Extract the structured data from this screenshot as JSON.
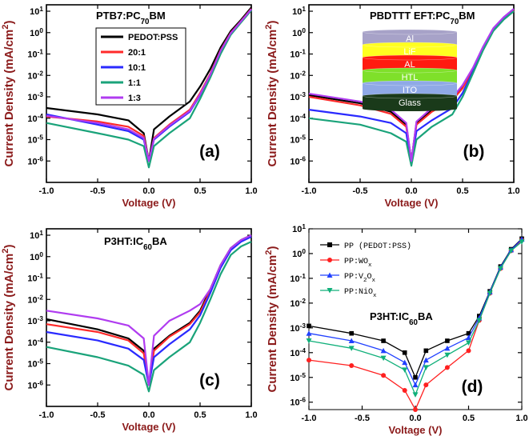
{
  "colors": {
    "black": "#000000",
    "red": "#ff2a2a",
    "blue": "#2a2aff",
    "teal": "#1aa37a",
    "purple": "#b03cf0",
    "axis_label": "#8b1a1a",
    "d_black": "#000000",
    "d_red": "#ff2020",
    "d_blue": "#2040ff",
    "d_teal": "#10b07a"
  },
  "chart_data": [
    {
      "panel": "a",
      "type": "line",
      "label": "(a)",
      "title": {
        "pre": "PTB7:PC",
        "sub": "70",
        "post": "BM"
      },
      "xlabel": "Voltage (V)",
      "ylabel": "Current Density (mA/cm²)",
      "ylabel_parts": {
        "pre": "Current Density (mA/cm",
        "sup": "2",
        "post": ")"
      },
      "xlim": [
        -1.0,
        1.0
      ],
      "ylim_log10": [
        -7,
        1.3
      ],
      "xticks": [
        "-1.0",
        "-0.5",
        "0.0",
        "0.5",
        "1.0"
      ],
      "yticks": [
        {
          "m": "10",
          "e": "1"
        },
        {
          "m": "10",
          "e": "0"
        },
        {
          "m": "10",
          "e": "-1"
        },
        {
          "m": "10",
          "e": "-2"
        },
        {
          "m": "10",
          "e": "-3"
        },
        {
          "m": "10",
          "e": "-4"
        },
        {
          "m": "10",
          "e": "-5"
        },
        {
          "m": "10",
          "e": "-6"
        }
      ],
      "legend": [
        "PEDOT:PSS",
        "20:1",
        "10:1",
        "1:1",
        "1:3"
      ],
      "series": [
        {
          "name": "PEDOT:PSS",
          "color": "black",
          "x": [
            -1.0,
            -0.5,
            -0.2,
            -0.05,
            0,
            0.05,
            0.2,
            0.4,
            0.5,
            0.6,
            0.7,
            0.8,
            0.9,
            1.0
          ],
          "y": [
            0.0003,
            0.00015,
            8e-05,
            2e-05,
            1e-06,
            3e-05,
            0.00012,
            0.0006,
            0.003,
            0.02,
            0.2,
            1.2,
            4,
            15
          ]
        },
        {
          "name": "20:1",
          "color": "red",
          "x": [
            -1.0,
            -0.5,
            -0.2,
            -0.05,
            0,
            0.05,
            0.2,
            0.4,
            0.5,
            0.6,
            0.7,
            0.8,
            0.9,
            1.0
          ],
          "y": [
            0.00012,
            7e-05,
            4e-05,
            1.5e-05,
            1e-06,
            1.2e-05,
            5e-05,
            0.00025,
            0.0015,
            0.012,
            0.15,
            1,
            3.5,
            13
          ]
        },
        {
          "name": "10:1",
          "color": "blue",
          "x": [
            -1.0,
            -0.5,
            -0.2,
            -0.05,
            0,
            0.05,
            0.2,
            0.4,
            0.5,
            0.6,
            0.7,
            0.8,
            0.9,
            1.0
          ],
          "y": [
            0.00015,
            5e-05,
            2.5e-05,
            1e-05,
            1e-06,
            1e-05,
            4e-05,
            0.0002,
            0.0012,
            0.01,
            0.13,
            0.9,
            3.2,
            12
          ]
        },
        {
          "name": "1:1",
          "color": "teal",
          "x": [
            -1.0,
            -0.5,
            -0.2,
            -0.05,
            0,
            0.05,
            0.2,
            0.4,
            0.5,
            0.6,
            0.7,
            0.8,
            0.9,
            1.0
          ],
          "y": [
            6e-05,
            2e-05,
            1e-05,
            5e-06,
            5e-07,
            5e-06,
            2e-05,
            0.0001,
            0.0008,
            0.008,
            0.1,
            0.8,
            3,
            11
          ]
        },
        {
          "name": "1:3",
          "color": "purple",
          "x": [
            -1.0,
            -0.5,
            -0.2,
            -0.05,
            0,
            0.05,
            0.2,
            0.4,
            0.5,
            0.6,
            0.7,
            0.8,
            0.9,
            1.0
          ],
          "y": [
            0.00013,
            6e-05,
            3e-05,
            1.2e-05,
            1e-06,
            1.1e-05,
            4.5e-05,
            0.00022,
            0.0013,
            0.011,
            0.14,
            0.95,
            3.4,
            12.5
          ]
        }
      ]
    },
    {
      "panel": "b",
      "type": "line",
      "label": "(b)",
      "title": {
        "pre": "PBDTTT EFT:PC",
        "sub": "70",
        "post": "BM"
      },
      "xlabel": "Voltage (V)",
      "ylabel": "Current Density (mA/cm²)",
      "ylabel_parts": {
        "pre": "Current Density (mA/cm",
        "sup": "2",
        "post": ")"
      },
      "xlim": [
        -1.0,
        1.0
      ],
      "ylim_log10": [
        -7,
        1.3
      ],
      "xticks": [
        "-1.0",
        "-0.5",
        "0.0",
        "0.5",
        "1.0"
      ],
      "yticks": [
        {
          "m": "10",
          "e": "1"
        },
        {
          "m": "10",
          "e": "0"
        },
        {
          "m": "10",
          "e": "-1"
        },
        {
          "m": "10",
          "e": "-2"
        },
        {
          "m": "10",
          "e": "-3"
        },
        {
          "m": "10",
          "e": "-4"
        },
        {
          "m": "10",
          "e": "-5"
        },
        {
          "m": "10",
          "e": "-6"
        }
      ],
      "stack": [
        "Al",
        "LiF",
        "AL",
        "HTL",
        "ITO",
        "Glass"
      ],
      "series": [
        {
          "name": "PEDOT:PSS",
          "color": "black",
          "x": [
            -1.0,
            -0.5,
            -0.2,
            -0.05,
            0,
            0.05,
            0.2,
            0.4,
            0.5,
            0.6,
            0.7,
            0.8,
            0.9,
            1.0
          ],
          "y": [
            0.0012,
            0.0005,
            0.0002,
            5e-05,
            1e-06,
            6e-05,
            0.00025,
            0.0008,
            0.003,
            0.02,
            0.2,
            1.5,
            5,
            12
          ]
        },
        {
          "name": "20:1",
          "color": "red",
          "x": [
            -1.0,
            -0.5,
            -0.2,
            -0.05,
            0,
            0.05,
            0.2,
            0.4,
            0.5,
            0.6,
            0.7,
            0.8,
            0.9,
            1.0
          ],
          "y": [
            0.001,
            0.0004,
            0.00016,
            4e-05,
            1e-06,
            5e-05,
            0.0002,
            0.0007,
            0.0025,
            0.018,
            0.18,
            1.4,
            4.5,
            11
          ]
        },
        {
          "name": "10:1",
          "color": "blue",
          "x": [
            -1.0,
            -0.5,
            -0.2,
            -0.05,
            0,
            0.05,
            0.2,
            0.4,
            0.5,
            0.6,
            0.7,
            0.8,
            0.9,
            1.0
          ],
          "y": [
            0.00025,
            0.00012,
            6e-05,
            2e-05,
            8e-07,
            2.5e-05,
            8e-05,
            0.0003,
            0.0015,
            0.015,
            0.16,
            1.3,
            4.2,
            10
          ]
        },
        {
          "name": "1:1",
          "color": "teal",
          "x": [
            -1.0,
            -0.5,
            -0.2,
            -0.05,
            0,
            0.05,
            0.2,
            0.4,
            0.5,
            0.6,
            0.7,
            0.8,
            0.9,
            1.0
          ],
          "y": [
            0.0001,
            5e-05,
            2e-05,
            8e-06,
            6e-07,
            1e-05,
            4e-05,
            0.00015,
            0.001,
            0.012,
            0.15,
            1.2,
            4,
            10
          ]
        },
        {
          "name": "1:3",
          "color": "purple",
          "x": [
            -1.0,
            -0.5,
            -0.2,
            -0.05,
            0,
            0.05,
            0.2,
            0.4,
            0.5,
            0.6,
            0.7,
            0.8,
            0.9,
            1.0
          ],
          "y": [
            0.0014,
            0.0006,
            0.00025,
            6e-05,
            1e-06,
            7e-05,
            0.0003,
            0.0009,
            0.0035,
            0.022,
            0.22,
            1.6,
            5.2,
            13
          ]
        }
      ]
    },
    {
      "panel": "c",
      "type": "line",
      "label": "(c)",
      "title": {
        "pre": "P3HT:IC",
        "sub": "60",
        "post": "BA"
      },
      "xlabel": "Voltage (V)",
      "ylabel": "Current Density (mA/cm²)",
      "ylabel_parts": {
        "pre": "Current Density (mA/cm",
        "sup": "2",
        "post": ")"
      },
      "xlim": [
        -1.0,
        1.0
      ],
      "ylim_log10": [
        -7,
        1.3
      ],
      "xticks": [
        "-1.0",
        "-0.5",
        "0.0",
        "0.5",
        "1.0"
      ],
      "yticks": [
        {
          "m": "10",
          "e": "1"
        },
        {
          "m": "10",
          "e": "0"
        },
        {
          "m": "10",
          "e": "-1"
        },
        {
          "m": "10",
          "e": "-2"
        },
        {
          "m": "10",
          "e": "-3"
        },
        {
          "m": "10",
          "e": "-4"
        },
        {
          "m": "10",
          "e": "-5"
        },
        {
          "m": "10",
          "e": "-6"
        }
      ],
      "series": [
        {
          "name": "PEDOT:PSS",
          "color": "black",
          "x": [
            -1.0,
            -0.5,
            -0.2,
            -0.05,
            0,
            0.05,
            0.2,
            0.4,
            0.5,
            0.6,
            0.7,
            0.8,
            0.9,
            1.0
          ],
          "y": [
            0.0012,
            0.0004,
            0.00015,
            4e-05,
            1e-06,
            5e-05,
            0.0002,
            0.0008,
            0.003,
            0.03,
            0.4,
            2.5,
            6,
            10
          ]
        },
        {
          "name": "20:1",
          "color": "red",
          "x": [
            -1.0,
            -0.5,
            -0.2,
            -0.05,
            0,
            0.05,
            0.2,
            0.4,
            0.5,
            0.6,
            0.7,
            0.8,
            0.9,
            1.0
          ],
          "y": [
            0.0007,
            0.0003,
            0.00012,
            3e-05,
            1e-06,
            4e-05,
            0.00018,
            0.0007,
            0.0025,
            0.025,
            0.35,
            2.2,
            5.5,
            9
          ]
        },
        {
          "name": "10:1",
          "color": "blue",
          "x": [
            -1.0,
            -0.5,
            -0.2,
            -0.05,
            0,
            0.05,
            0.2,
            0.4,
            0.5,
            0.6,
            0.7,
            0.8,
            0.9,
            1.0
          ],
          "y": [
            0.0003,
            0.00012,
            5e-05,
            1.5e-05,
            1e-06,
            2e-05,
            8e-05,
            0.0004,
            0.0018,
            0.02,
            0.3,
            2,
            5,
            8.5
          ]
        },
        {
          "name": "1:1",
          "color": "teal",
          "x": [
            -1.0,
            -0.5,
            -0.2,
            -0.05,
            0,
            0.05,
            0.2,
            0.4,
            0.5,
            0.6,
            0.7,
            0.8,
            0.9,
            1.0
          ],
          "y": [
            6e-05,
            2e-05,
            8e-06,
            3e-06,
            5e-07,
            5e-06,
            2e-05,
            0.0001,
            0.0008,
            0.01,
            0.15,
            1.2,
            3,
            5
          ]
        },
        {
          "name": "1:3",
          "color": "purple",
          "x": [
            -1.0,
            -0.5,
            -0.2,
            -0.05,
            0,
            0.05,
            0.2,
            0.4,
            0.5,
            0.6,
            0.7,
            0.8,
            0.9,
            1.0
          ],
          "y": [
            0.003,
            0.0013,
            0.0006,
            0.00015,
            1e-06,
            0.0002,
            0.001,
            0.003,
            0.006,
            0.03,
            0.4,
            2.5,
            6,
            10
          ]
        }
      ]
    },
    {
      "panel": "d",
      "type": "line",
      "label": "(d)",
      "title": {
        "pre": "P3HT:IC",
        "sub": "60",
        "post": "BA"
      },
      "xlabel": "Voltage (V)",
      "ylabel": "Current Density (mA/cm²)",
      "ylabel_parts": {
        "pre": "Current Density (mA/cm",
        "sup": "2",
        "post": ")"
      },
      "xlim": [
        -1.0,
        1.0
      ],
      "ylim_log10": [
        -6.3,
        1
      ],
      "xticks": [
        "-1.0",
        "-0.5",
        "0.0",
        "0.5",
        "1.0"
      ],
      "yticks": [
        {
          "m": "10",
          "e": "1"
        },
        {
          "m": "10",
          "e": "0"
        },
        {
          "m": "10",
          "e": "-1"
        },
        {
          "m": "10",
          "e": "-2"
        },
        {
          "m": "10",
          "e": "-3"
        },
        {
          "m": "10",
          "e": "-4"
        },
        {
          "m": "10",
          "e": "-5"
        },
        {
          "m": "10",
          "e": "-6"
        }
      ],
      "legend": [
        {
          "pre": "PP (PEDOT:PSS)",
          "sub": "",
          "post": ""
        },
        {
          "pre": "PP:WO",
          "sub": "x",
          "post": ""
        },
        {
          "pre": "PP:V",
          "sub": "2",
          "post": "O",
          "sub2": "x"
        },
        {
          "pre": "PP:NiO",
          "sub": "x",
          "post": ""
        }
      ],
      "series": [
        {
          "name": "PP (PEDOT:PSS)",
          "color": "d_black",
          "marker": "square",
          "x": [
            -1.0,
            -0.6,
            -0.3,
            -0.1,
            0,
            0.1,
            0.3,
            0.5,
            0.6,
            0.7,
            0.8,
            0.9,
            1.0
          ],
          "y": [
            0.0012,
            0.0006,
            0.0003,
            0.0001,
            1e-05,
            0.00012,
            0.0003,
            0.0006,
            0.003,
            0.03,
            0.3,
            1.5,
            4
          ]
        },
        {
          "name": "PP:WOx",
          "color": "d_red",
          "marker": "circle",
          "x": [
            -1.0,
            -0.6,
            -0.3,
            -0.1,
            0,
            0.1,
            0.3,
            0.5,
            0.6,
            0.7,
            0.8,
            0.9,
            1.0
          ],
          "y": [
            5e-05,
            3e-05,
            1.2e-05,
            3e-06,
            5e-07,
            5e-06,
            2.5e-05,
            0.00012,
            0.002,
            0.025,
            0.25,
            1.3,
            3.5
          ]
        },
        {
          "name": "PP:V2Ox",
          "color": "d_blue",
          "marker": "triangle",
          "x": [
            -1.0,
            -0.6,
            -0.3,
            -0.1,
            0,
            0.1,
            0.3,
            0.5,
            0.6,
            0.7,
            0.8,
            0.9,
            1.0
          ],
          "y": [
            0.0006,
            0.0003,
            0.00012,
            4e-05,
            5e-06,
            5e-05,
            0.00015,
            0.0004,
            0.0025,
            0.028,
            0.28,
            1.4,
            3.8
          ]
        },
        {
          "name": "PP:NiOx",
          "color": "d_teal",
          "marker": "triangle-down",
          "x": [
            -1.0,
            -0.6,
            -0.3,
            -0.1,
            0,
            0.1,
            0.3,
            0.5,
            0.6,
            0.7,
            0.8,
            0.9,
            1.0
          ],
          "y": [
            0.0003,
            0.00015,
            6e-05,
            2e-05,
            2e-06,
            2.5e-05,
            8e-05,
            0.00025,
            0.002,
            0.025,
            0.25,
            1.3,
            3
          ]
        }
      ]
    }
  ]
}
